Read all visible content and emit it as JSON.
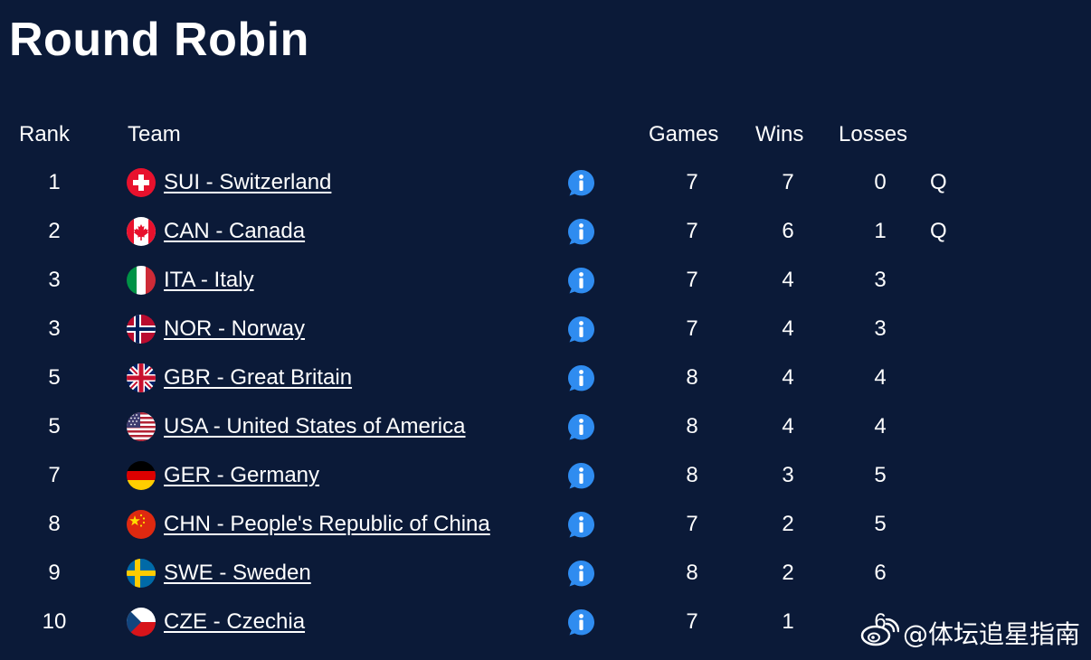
{
  "title": "Round Robin",
  "headers": {
    "rank": "Rank",
    "team": "Team",
    "games": "Games",
    "wins": "Wins",
    "losses": "Losses"
  },
  "rows": [
    {
      "rank": "1",
      "team": "SUI - Switzerland",
      "flag": "switzerland-flag-icon",
      "games": "7",
      "wins": "7",
      "losses": "0",
      "q": "Q"
    },
    {
      "rank": "2",
      "team": "CAN - Canada",
      "flag": "canada-flag-icon",
      "games": "7",
      "wins": "6",
      "losses": "1",
      "q": "Q"
    },
    {
      "rank": "3",
      "team": "ITA - Italy",
      "flag": "italy-flag-icon",
      "games": "7",
      "wins": "4",
      "losses": "3",
      "q": ""
    },
    {
      "rank": "3",
      "team": "NOR - Norway",
      "flag": "norway-flag-icon",
      "games": "7",
      "wins": "4",
      "losses": "3",
      "q": ""
    },
    {
      "rank": "5",
      "team": "GBR - Great Britain",
      "flag": "great-britain-flag-icon",
      "games": "8",
      "wins": "4",
      "losses": "4",
      "q": ""
    },
    {
      "rank": "5",
      "team": "USA - United States of America",
      "flag": "usa-flag-icon",
      "games": "8",
      "wins": "4",
      "losses": "4",
      "q": ""
    },
    {
      "rank": "7",
      "team": "GER - Germany",
      "flag": "germany-flag-icon",
      "games": "8",
      "wins": "3",
      "losses": "5",
      "q": ""
    },
    {
      "rank": "8",
      "team": "CHN - People's Republic of China",
      "flag": "china-flag-icon",
      "games": "7",
      "wins": "2",
      "losses": "5",
      "q": ""
    },
    {
      "rank": "9",
      "team": "SWE - Sweden",
      "flag": "sweden-flag-icon",
      "games": "8",
      "wins": "2",
      "losses": "6",
      "q": ""
    },
    {
      "rank": "10",
      "team": "CZE - Czechia",
      "flag": "czechia-flag-icon",
      "games": "7",
      "wins": "1",
      "losses": "6",
      "q": ""
    }
  ],
  "info_icon": "info-icon",
  "watermark": "@体坛追星指南",
  "colors": {
    "background": "#0b1a38",
    "text": "#ffffff",
    "info_blue": "#2f8cf0"
  }
}
